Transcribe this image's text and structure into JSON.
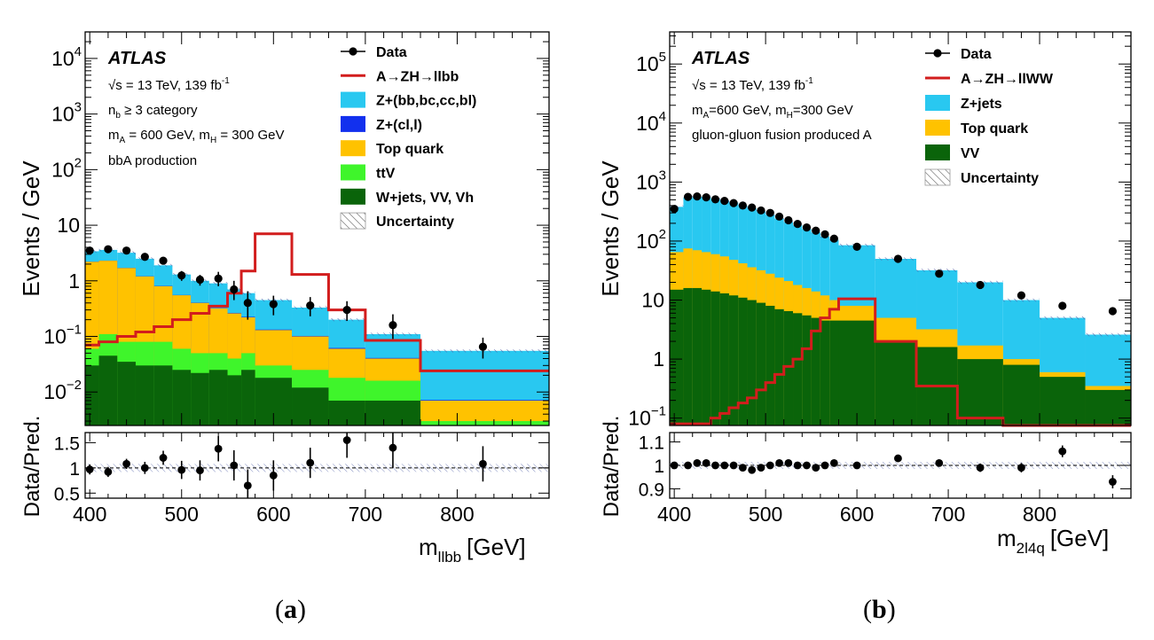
{
  "captions": [
    "(a)",
    "(b)"
  ],
  "chart_data": [
    {
      "type": "bar",
      "title": "",
      "stacked": true,
      "yscale": "log",
      "ylabel": "Events / GeV",
      "xlabel": "m",
      "xlabel_sub": "llbb",
      "xlabel_unit": "[GeV]",
      "xlim": [
        395,
        900
      ],
      "ylim": [
        0.0025,
        30000
      ],
      "x_ticks": [
        400,
        500,
        600,
        700,
        800
      ],
      "y_ticks": [
        {
          "v": 10000,
          "label": "10",
          "sup": "4"
        },
        {
          "v": 1000,
          "label": "10",
          "sup": "3"
        },
        {
          "v": 100,
          "label": "10",
          "sup": "2"
        },
        {
          "v": 10,
          "label": "10",
          "sup": ""
        },
        {
          "v": 1,
          "label": "1",
          "sup": ""
        },
        {
          "v": 0.1,
          "label": "10",
          "sup": "−1"
        },
        {
          "v": 0.01,
          "label": "10",
          "sup": "−2"
        }
      ],
      "info": {
        "atlas": "ATLAS",
        "lines": [
          "√s = 13 TeV, 139 fb⁻¹",
          "n_b ≥ 3 category",
          "m_A = 600 GeV, m_H = 300 GeV",
          "bbA production"
        ]
      },
      "legend": [
        {
          "label": "Data",
          "kind": "data"
        },
        {
          "label": "A→ZH→llbb",
          "kind": "line",
          "color": "#d21d1d"
        },
        {
          "label": "Z+(bb,bc,cc,bl)",
          "kind": "box",
          "color": "#29c8f0"
        },
        {
          "label": "Z+(cl,l)",
          "kind": "box",
          "color": "#1230ee"
        },
        {
          "label": "Top quark",
          "kind": "box",
          "color": "#ffc200"
        },
        {
          "label": "ttV",
          "kind": "box",
          "color": "#3ff52b"
        },
        {
          "label": "W+jets, VV, Vh",
          "kind": "box",
          "color": "#0a640a"
        },
        {
          "label": "Uncertainty",
          "kind": "hatch"
        }
      ],
      "bin_edges": [
        395,
        410,
        430,
        450,
        470,
        490,
        510,
        530,
        550,
        565,
        580,
        620,
        660,
        700,
        760,
        900
      ],
      "series": [
        {
          "name": "W+jets, VV, Vh",
          "color": "#0a640a",
          "values": [
            0.03,
            0.045,
            0.035,
            0.03,
            0.03,
            0.025,
            0.022,
            0.025,
            0.02,
            0.025,
            0.018,
            0.012,
            0.007,
            0.007,
            0.002
          ]
        },
        {
          "name": "ttV",
          "color": "#3ff52b",
          "values": [
            0.06,
            0.11,
            0.08,
            0.08,
            0.08,
            0.06,
            0.05,
            0.05,
            0.04,
            0.05,
            0.03,
            0.025,
            0.018,
            0.016,
            0.003
          ]
        },
        {
          "name": "Top quark",
          "color": "#ffc200",
          "values": [
            2.2,
            2.3,
            1.7,
            1.2,
            0.8,
            0.55,
            0.4,
            0.32,
            0.26,
            0.22,
            0.13,
            0.1,
            0.06,
            0.04,
            0.007
          ]
        },
        {
          "name": "Z+(cl,l)",
          "color": "#1230ee",
          "values": [
            2.21,
            2.31,
            1.71,
            1.21,
            0.81,
            0.555,
            0.405,
            0.325,
            0.265,
            0.225,
            0.133,
            0.102,
            0.062,
            0.041,
            0.0072
          ]
        },
        {
          "name": "Z+(bb,bc,cc,bl)",
          "color": "#29c8f0",
          "values": [
            3.4,
            3.6,
            3.2,
            2.5,
            1.9,
            1.3,
            1.0,
            0.9,
            0.7,
            0.6,
            0.45,
            0.33,
            0.2,
            0.11,
            0.055
          ]
        }
      ],
      "signal": {
        "name": "A→ZH→llbb",
        "color": "#d21d1d",
        "values": [
          0.07,
          0.08,
          0.1,
          0.12,
          0.15,
          0.2,
          0.26,
          0.35,
          0.6,
          1.5,
          7.0,
          1.3,
          0.3,
          0.085,
          0.024
        ]
      },
      "data": {
        "x": [
          400,
          420,
          440,
          460,
          480,
          500,
          520,
          540,
          557,
          572,
          600,
          640,
          680,
          730,
          828
        ],
        "y": [
          3.5,
          3.7,
          3.5,
          2.7,
          2.3,
          1.25,
          1.05,
          1.1,
          0.7,
          0.4,
          0.38,
          0.36,
          0.3,
          0.16,
          0.065
        ],
        "err_low": [
          0.4,
          0.4,
          0.4,
          0.35,
          0.3,
          0.25,
          0.23,
          0.3,
          0.25,
          0.2,
          0.14,
          0.13,
          0.11,
          0.07,
          0.025
        ],
        "err_high": [
          0.4,
          0.4,
          0.4,
          0.35,
          0.3,
          0.25,
          0.23,
          0.35,
          0.3,
          0.25,
          0.16,
          0.15,
          0.13,
          0.09,
          0.03
        ]
      },
      "ratio": {
        "ylabel": "Data/Pred.",
        "ylim": [
          0.4,
          1.7
        ],
        "y_ticks": [
          0.5,
          1,
          1.5
        ],
        "y_tick_labels": [
          "0.5",
          "1",
          "1.5"
        ],
        "x": [
          400,
          420,
          440,
          460,
          480,
          500,
          520,
          540,
          557,
          572,
          600,
          640,
          680,
          730,
          828
        ],
        "y": [
          0.97,
          0.92,
          1.08,
          1.0,
          1.2,
          0.96,
          0.95,
          1.38,
          1.05,
          0.65,
          0.85,
          1.1,
          1.55,
          1.4,
          1.08
        ],
        "err": [
          0.1,
          0.1,
          0.1,
          0.12,
          0.14,
          0.18,
          0.2,
          0.25,
          0.3,
          0.32,
          0.3,
          0.3,
          0.35,
          0.4,
          0.35
        ],
        "band": 0.08
      }
    },
    {
      "type": "bar",
      "title": "",
      "stacked": true,
      "yscale": "log",
      "ylabel": "Events / GeV",
      "xlabel": "m",
      "xlabel_sub": "2l4q",
      "xlabel_unit": "[GeV]",
      "xlim": [
        395,
        900
      ],
      "ylim": [
        0.075,
        350000
      ],
      "x_ticks": [
        400,
        500,
        600,
        700,
        800
      ],
      "y_ticks": [
        {
          "v": 100000,
          "label": "10",
          "sup": "5"
        },
        {
          "v": 10000,
          "label": "10",
          "sup": "4"
        },
        {
          "v": 1000,
          "label": "10",
          "sup": "3"
        },
        {
          "v": 100,
          "label": "10",
          "sup": "2"
        },
        {
          "v": 10,
          "label": "10",
          "sup": ""
        },
        {
          "v": 1,
          "label": "1",
          "sup": ""
        },
        {
          "v": 0.1,
          "label": "10",
          "sup": "−1"
        }
      ],
      "info": {
        "atlas": "ATLAS",
        "lines": [
          "√s = 13 TeV, 139 fb⁻¹",
          "m_A=600 GeV, m_H=300 GeV",
          "gluon-gluon fusion produced A"
        ]
      },
      "legend": [
        {
          "label": "Data",
          "kind": "data"
        },
        {
          "label": "A→ZH→llWW",
          "kind": "line",
          "color": "#d21d1d"
        },
        {
          "label": "Z+jets",
          "kind": "box",
          "color": "#29c8f0"
        },
        {
          "label": "Top quark",
          "kind": "box",
          "color": "#ffc200"
        },
        {
          "label": "VV",
          "kind": "box",
          "color": "#0a640a"
        },
        {
          "label": "Uncertainty",
          "kind": "hatch"
        }
      ],
      "bin_edges": [
        395,
        410,
        420,
        430,
        440,
        450,
        460,
        470,
        480,
        490,
        500,
        510,
        520,
        530,
        540,
        550,
        560,
        570,
        580,
        620,
        665,
        710,
        760,
        800,
        850,
        900
      ],
      "series": [
        {
          "name": "VV",
          "color": "#0a640a",
          "values": [
            15,
            16,
            16,
            15,
            14,
            13,
            12,
            11,
            10,
            9,
            8,
            7,
            6.5,
            6,
            5.5,
            5,
            4.5,
            4.5,
            4.5,
            2.0,
            1.6,
            1.0,
            0.8,
            0.5,
            0.3
          ]
        },
        {
          "name": "Top quark",
          "color": "#ffc200",
          "values": [
            65,
            75,
            70,
            65,
            60,
            55,
            48,
            42,
            36,
            32,
            28,
            24,
            21,
            18,
            16,
            14,
            12,
            10,
            8,
            5,
            3.2,
            1.7,
            1.0,
            0.6,
            0.35
          ]
        },
        {
          "name": "Z+jets",
          "color": "#29c8f0",
          "values": [
            380,
            550,
            560,
            560,
            520,
            490,
            450,
            400,
            360,
            320,
            280,
            240,
            210,
            185,
            160,
            140,
            120,
            105,
            85,
            50,
            32,
            20,
            10,
            5,
            2.6
          ]
        }
      ],
      "signal": {
        "name": "A→ZH→llWW",
        "color": "#d21d1d",
        "values": [
          0.08,
          0.08,
          0.08,
          0.08,
          0.1,
          0.12,
          0.15,
          0.18,
          0.22,
          0.3,
          0.4,
          0.55,
          0.75,
          1.0,
          1.5,
          3.0,
          5.0,
          7.0,
          10.5,
          2.0,
          0.35,
          0.1,
          0.075,
          0.075,
          0.075
        ]
      },
      "data": {
        "x": [
          400,
          415,
          425,
          435,
          445,
          455,
          465,
          475,
          485,
          495,
          505,
          515,
          525,
          535,
          545,
          555,
          565,
          575,
          600,
          645,
          690,
          735,
          780,
          825,
          880
        ],
        "y": [
          350,
          560,
          570,
          550,
          510,
          480,
          440,
          400,
          370,
          330,
          300,
          260,
          225,
          195,
          170,
          150,
          130,
          110,
          80,
          50,
          28,
          18,
          12,
          8,
          6.5
        ],
        "err_low": [
          0,
          0,
          0,
          0,
          0,
          0,
          0,
          0,
          0,
          0,
          0,
          0,
          0,
          0,
          0,
          0,
          0,
          0,
          0,
          0,
          0,
          0,
          0,
          0,
          0
        ],
        "err_high": [
          0,
          0,
          0,
          0,
          0,
          0,
          0,
          0,
          0,
          0,
          0,
          0,
          0,
          0,
          0,
          0,
          0,
          0,
          0,
          0,
          0,
          0,
          0,
          0,
          0
        ]
      },
      "ratio": {
        "ylabel": "Data/Pred.",
        "ylim": [
          0.86,
          1.14
        ],
        "y_ticks": [
          0.9,
          1,
          1.1
        ],
        "y_tick_labels": [
          "0.9",
          "1",
          "1.1"
        ],
        "x": [
          400,
          415,
          425,
          435,
          445,
          455,
          465,
          475,
          485,
          495,
          505,
          515,
          525,
          535,
          545,
          555,
          565,
          575,
          600,
          645,
          690,
          735,
          780,
          825,
          880
        ],
        "y": [
          1.0,
          1.0,
          1.01,
          1.01,
          1.0,
          1.0,
          1.0,
          0.99,
          0.98,
          0.99,
          1.0,
          1.01,
          1.01,
          1.0,
          1.0,
          0.99,
          1.0,
          1.01,
          1.0,
          1.03,
          1.01,
          0.99,
          0.99,
          1.06,
          0.93
        ],
        "err": [
          0.005,
          0.005,
          0.005,
          0.005,
          0.005,
          0.005,
          0.005,
          0.005,
          0.006,
          0.006,
          0.006,
          0.006,
          0.006,
          0.007,
          0.007,
          0.007,
          0.008,
          0.009,
          0.01,
          0.012,
          0.015,
          0.018,
          0.02,
          0.025,
          0.028
        ],
        "band": 0.015
      }
    }
  ]
}
